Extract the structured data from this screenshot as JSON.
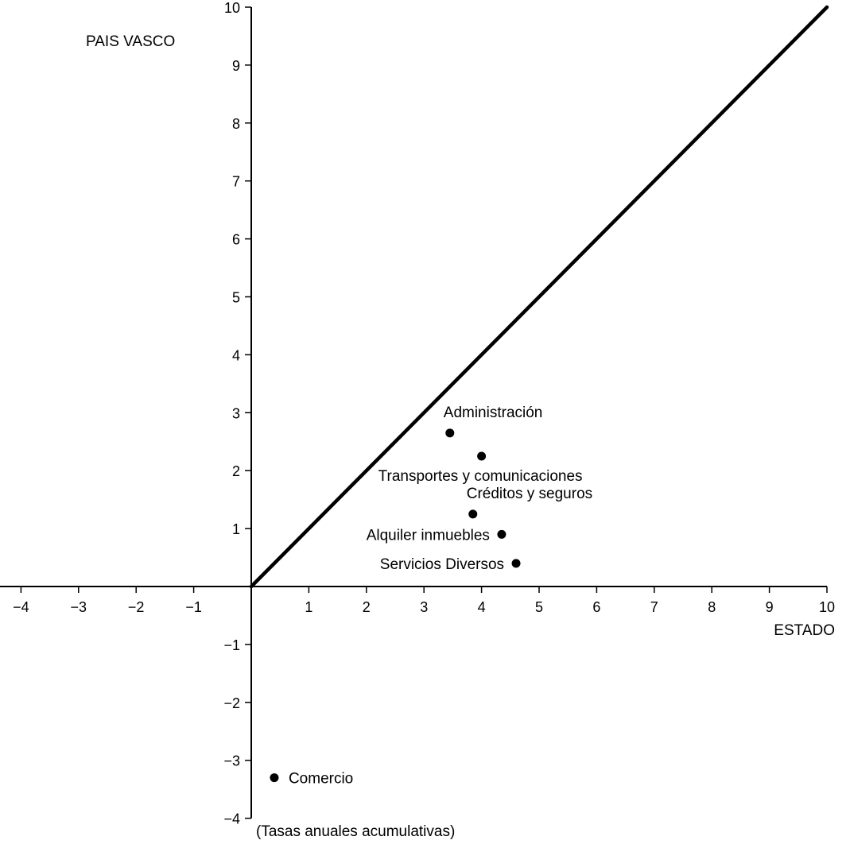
{
  "chart_data": {
    "type": "scatter",
    "title": "",
    "xlabel": "ESTADO",
    "ylabel": "PAIS VASCO",
    "note": "(Tasas anuales acumulativas)",
    "xlim": [
      -4,
      10
    ],
    "ylim": [
      -4,
      10
    ],
    "x_ticks": [
      -4,
      -3,
      -2,
      -1,
      1,
      2,
      3,
      4,
      5,
      6,
      7,
      8,
      9,
      10
    ],
    "x_tick_labels": [
      "−4",
      "−3",
      "−2",
      "−1",
      "1",
      "2",
      "3",
      "4",
      "5",
      "6",
      "7",
      "8",
      "9",
      "10"
    ],
    "y_ticks": [
      -4,
      -3,
      -2,
      -1,
      1,
      2,
      3,
      4,
      5,
      6,
      7,
      8,
      9,
      10
    ],
    "y_tick_labels": [
      "−4",
      "−3",
      "−2",
      "−1",
      "1",
      "2",
      "3",
      "4",
      "5",
      "6",
      "7",
      "8",
      "9",
      "10"
    ],
    "reference_line": {
      "from": [
        0,
        0
      ],
      "to": [
        10,
        10
      ]
    },
    "grid": false,
    "points": [
      {
        "label": "Administración",
        "x": 3.45,
        "y": 2.65,
        "label_pos": "above"
      },
      {
        "label": "Transportes y comunicaciones",
        "x": 4.0,
        "y": 2.25,
        "label_pos": "below"
      },
      {
        "label": "Créditos y seguros",
        "x": 3.85,
        "y": 1.25,
        "label_pos": "above"
      },
      {
        "label": "Alquiler inmuebles",
        "x": 4.35,
        "y": 0.9,
        "label_pos": "left"
      },
      {
        "label": "Servicios Diversos",
        "x": 4.6,
        "y": 0.4,
        "label_pos": "left"
      },
      {
        "label": "Comercio",
        "x": 0.4,
        "y": -3.3,
        "label_pos": "right"
      }
    ]
  }
}
